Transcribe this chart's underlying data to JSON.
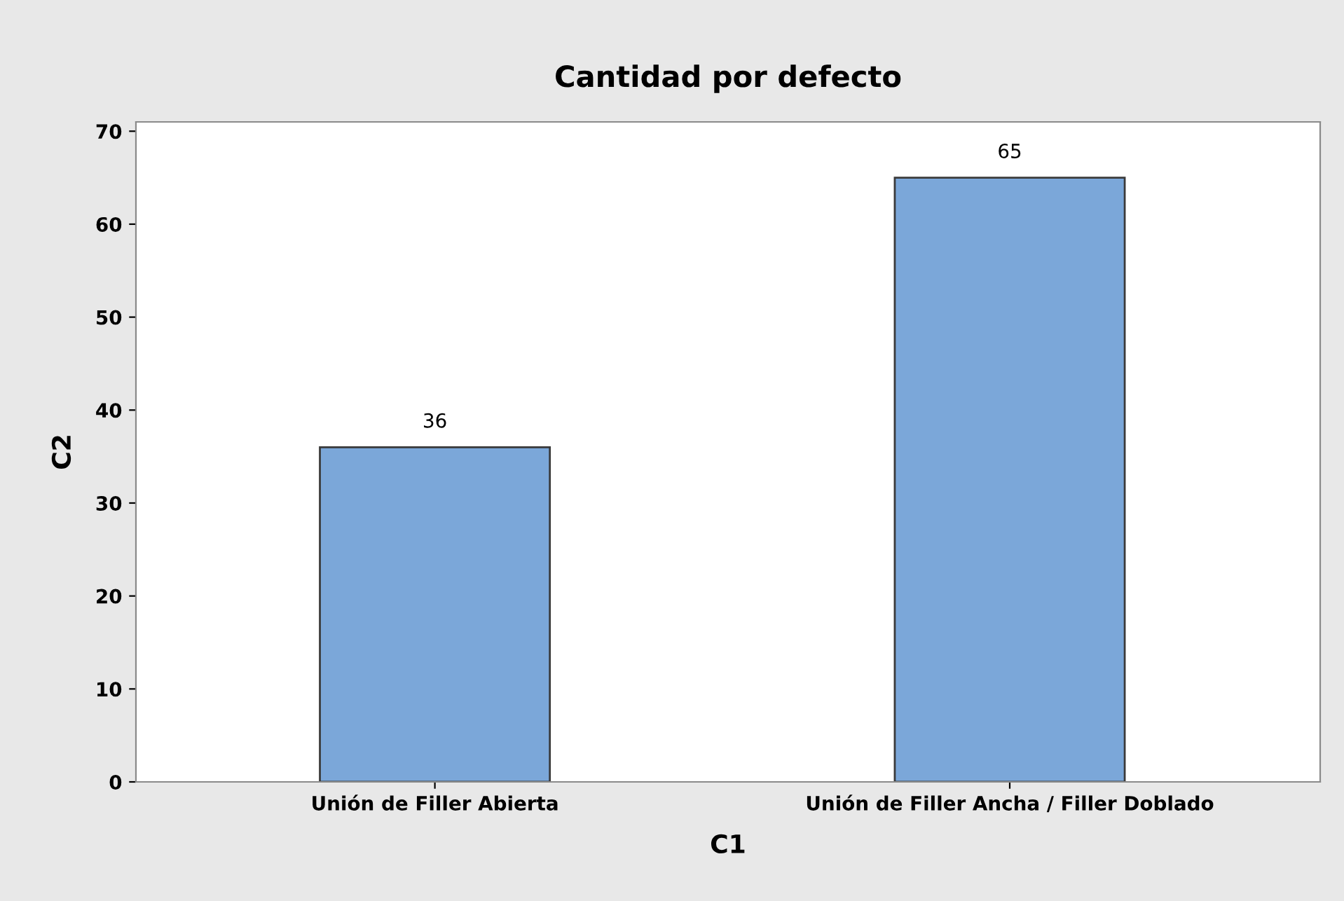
{
  "chart_data": {
    "type": "bar",
    "title": "Cantidad por defecto",
    "xlabel": "C1",
    "ylabel": "C2",
    "categories": [
      "Unión de Filler Abierta",
      "Unión de Filler Ancha / Filler Doblado"
    ],
    "values": [
      36,
      65
    ],
    "color": "#7ba7d9",
    "ylim": [
      0,
      71
    ],
    "yticks": [
      0,
      10,
      20,
      30,
      40,
      50,
      60,
      70
    ],
    "data_labels": true,
    "grid": false,
    "legend": false
  }
}
